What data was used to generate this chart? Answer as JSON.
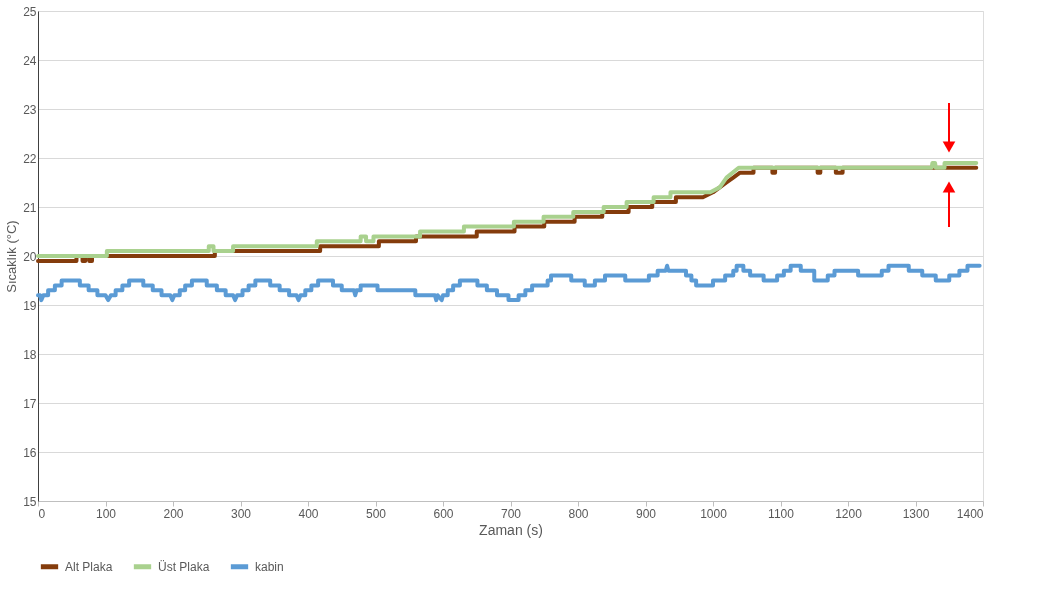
{
  "chart_data": {
    "type": "line",
    "xlabel": "Zaman (s)",
    "ylabel": "Sıcaklık (°C)",
    "xlim": [
      0,
      1400
    ],
    "xticks": [
      0,
      100,
      200,
      300,
      400,
      500,
      600,
      700,
      800,
      900,
      1000,
      1100,
      1200,
      1300,
      1400
    ],
    "ylim": [
      15,
      25
    ],
    "yticks": [
      15,
      16,
      17,
      18,
      19,
      20,
      21,
      22,
      23,
      24,
      25
    ],
    "grid": "y",
    "legend": "bottom",
    "marker": "none",
    "line_style": "solid",
    "series": [
      {
        "name": "Alt Plaka",
        "color": "#843c0c",
        "x": [
          0,
          57,
          57,
          66,
          66,
          70,
          70,
          76,
          76,
          80,
          80,
          262,
          262,
          418,
          418,
          505,
          505,
          560,
          560,
          650,
          650,
          706,
          706,
          750,
          750,
          795,
          795,
          836,
          836,
          875,
          875,
          910,
          910,
          945,
          945,
          985,
          1000,
          1010,
          1020,
          1030,
          1040,
          1060,
          1060,
          1088,
          1088,
          1092,
          1092,
          1155,
          1155,
          1159,
          1159,
          1182,
          1182,
          1192,
          1192,
          1390
        ],
        "values": [
          19.9,
          19.9,
          20.0,
          20.0,
          19.9,
          19.9,
          20.0,
          20.0,
          19.9,
          19.9,
          20.0,
          20.0,
          20.1,
          20.1,
          20.2,
          20.2,
          20.3,
          20.3,
          20.4,
          20.4,
          20.5,
          20.5,
          20.6,
          20.6,
          20.7,
          20.7,
          20.8,
          20.8,
          20.9,
          20.9,
          21.0,
          21.0,
          21.1,
          21.1,
          21.2,
          21.2,
          21.3,
          21.4,
          21.5,
          21.6,
          21.7,
          21.7,
          21.8,
          21.8,
          21.7,
          21.7,
          21.8,
          21.8,
          21.7,
          21.7,
          21.8,
          21.8,
          21.7,
          21.7,
          21.8,
          21.8
        ]
      },
      {
        "name": "Üst Plaka",
        "color": "#a9d18e",
        "x": [
          0,
          102,
          102,
          253,
          253,
          260,
          260,
          289,
          289,
          413,
          413,
          478,
          478,
          486,
          486,
          497,
          497,
          566,
          566,
          631,
          631,
          705,
          705,
          749,
          749,
          793,
          793,
          838,
          838,
          872,
          872,
          912,
          912,
          937,
          937,
          996,
          1010,
          1020,
          1038,
          1324,
          1325,
          1329,
          1330,
          1343,
          1343,
          1390
        ],
        "values": [
          20.0,
          20.0,
          20.1,
          20.1,
          20.2,
          20.2,
          20.1,
          20.1,
          20.2,
          20.2,
          20.3,
          20.3,
          20.4,
          20.4,
          20.3,
          20.3,
          20.4,
          20.4,
          20.5,
          20.5,
          20.6,
          20.6,
          20.7,
          20.7,
          20.8,
          20.8,
          20.9,
          20.9,
          21.0,
          21.0,
          21.1,
          21.1,
          21.2,
          21.2,
          21.3,
          21.3,
          21.4,
          21.6,
          21.8,
          21.8,
          21.9,
          21.9,
          21.8,
          21.8,
          21.9,
          21.9
        ]
      },
      {
        "name": "kabin",
        "color": "#5b9bd5",
        "x": [
          0,
          3,
          5,
          8,
          15,
          15,
          25,
          25,
          35,
          35,
          62,
          62,
          75,
          75,
          88,
          88,
          100,
          104,
          108,
          115,
          115,
          125,
          125,
          135,
          135,
          156,
          156,
          170,
          170,
          183,
          183,
          196,
          199,
          202,
          210,
          210,
          218,
          218,
          228,
          228,
          250,
          250,
          265,
          265,
          278,
          278,
          289,
          292,
          295,
          303,
          303,
          312,
          312,
          322,
          322,
          344,
          344,
          358,
          358,
          372,
          372,
          383,
          386,
          389,
          396,
          396,
          405,
          405,
          415,
          415,
          437,
          437,
          450,
          450,
          468,
          470,
          472,
          478,
          478,
          503,
          503,
          559,
          559,
          588,
          590,
          592,
          598,
          600,
          607,
          607,
          615,
          615,
          625,
          625,
          651,
          651,
          665,
          665,
          680,
          680,
          697,
          697,
          712,
          712,
          722,
          722,
          732,
          732,
          755,
          755,
          760,
          760,
          790,
          790,
          810,
          810,
          825,
          825,
          840,
          840,
          870,
          870,
          905,
          905,
          918,
          918,
          930,
          932,
          934,
          960,
          960,
          968,
          968,
          975,
          975,
          1000,
          1000,
          1018,
          1018,
          1030,
          1030,
          1035,
          1035,
          1045,
          1045,
          1055,
          1055,
          1075,
          1075,
          1095,
          1095,
          1105,
          1105,
          1115,
          1115,
          1130,
          1130,
          1150,
          1150,
          1170,
          1170,
          1180,
          1180,
          1215,
          1215,
          1250,
          1250,
          1260,
          1260,
          1290,
          1290,
          1310,
          1310,
          1330,
          1330,
          1350,
          1350,
          1365,
          1365,
          1377,
          1377,
          1395
        ],
        "values": [
          19.2,
          19.2,
          19.1,
          19.2,
          19.2,
          19.3,
          19.3,
          19.4,
          19.4,
          19.5,
          19.5,
          19.4,
          19.4,
          19.3,
          19.3,
          19.2,
          19.2,
          19.1,
          19.2,
          19.2,
          19.3,
          19.3,
          19.4,
          19.4,
          19.5,
          19.5,
          19.4,
          19.4,
          19.3,
          19.3,
          19.2,
          19.2,
          19.1,
          19.2,
          19.2,
          19.3,
          19.3,
          19.4,
          19.4,
          19.5,
          19.5,
          19.4,
          19.4,
          19.3,
          19.3,
          19.2,
          19.2,
          19.1,
          19.2,
          19.2,
          19.3,
          19.3,
          19.4,
          19.4,
          19.5,
          19.5,
          19.4,
          19.4,
          19.3,
          19.3,
          19.2,
          19.2,
          19.1,
          19.2,
          19.2,
          19.3,
          19.3,
          19.4,
          19.4,
          19.5,
          19.5,
          19.4,
          19.4,
          19.3,
          19.3,
          19.2,
          19.3,
          19.3,
          19.4,
          19.4,
          19.3,
          19.3,
          19.2,
          19.2,
          19.1,
          19.2,
          19.1,
          19.2,
          19.2,
          19.3,
          19.3,
          19.4,
          19.4,
          19.5,
          19.5,
          19.4,
          19.4,
          19.3,
          19.3,
          19.2,
          19.2,
          19.1,
          19.1,
          19.2,
          19.2,
          19.3,
          19.3,
          19.4,
          19.4,
          19.5,
          19.5,
          19.6,
          19.6,
          19.5,
          19.5,
          19.4,
          19.4,
          19.5,
          19.5,
          19.6,
          19.6,
          19.5,
          19.5,
          19.6,
          19.6,
          19.7,
          19.7,
          19.8,
          19.7,
          19.7,
          19.6,
          19.6,
          19.5,
          19.5,
          19.4,
          19.4,
          19.5,
          19.5,
          19.6,
          19.6,
          19.7,
          19.7,
          19.8,
          19.8,
          19.7,
          19.7,
          19.6,
          19.6,
          19.5,
          19.5,
          19.6,
          19.6,
          19.7,
          19.7,
          19.8,
          19.8,
          19.7,
          19.7,
          19.5,
          19.5,
          19.6,
          19.6,
          19.7,
          19.7,
          19.6,
          19.6,
          19.7,
          19.7,
          19.8,
          19.8,
          19.7,
          19.7,
          19.6,
          19.6,
          19.5,
          19.5,
          19.6,
          19.6,
          19.7,
          19.7,
          19.8,
          19.8
        ]
      }
    ]
  }
}
